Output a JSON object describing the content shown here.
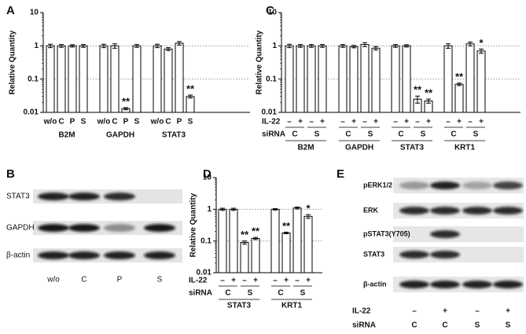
{
  "chart_data": [
    {
      "panel": "A",
      "type": "bar",
      "y_label": "Relative Quantity",
      "log_scale": true,
      "ylim": [
        0.01,
        10
      ],
      "yticks": [
        0.01,
        0.1,
        1,
        10
      ],
      "dashed_lines": [
        1,
        0.1
      ],
      "color": "#ffffff",
      "groups": [
        {
          "name": "B2M",
          "categories": [
            "w/o",
            "C",
            "P",
            "S"
          ],
          "values": [
            1,
            1,
            1,
            1
          ],
          "errors": [
            0.12,
            0.1,
            0.08,
            0.1
          ],
          "annotations": [
            null,
            null,
            null,
            null
          ]
        },
        {
          "name": "GAPDH",
          "categories": [
            "w/o",
            "C",
            "P",
            "S"
          ],
          "values": [
            1,
            1,
            0.013,
            1
          ],
          "errors": [
            0.12,
            0.15,
            0.001,
            0.1
          ],
          "annotations": [
            null,
            null,
            "**",
            null
          ]
        },
        {
          "name": "STAT3",
          "categories": [
            "w/o",
            "C",
            "P",
            "S"
          ],
          "values": [
            1,
            0.8,
            1.2,
            0.03
          ],
          "errors": [
            0.12,
            0.08,
            0.15,
            0.003
          ],
          "annotations": [
            null,
            null,
            null,
            "**"
          ]
        }
      ]
    },
    {
      "panel": "C",
      "type": "bar",
      "y_label": "Relative Quantity",
      "log_scale": true,
      "ylim": [
        0.01,
        10
      ],
      "yticks": [
        0.01,
        0.1,
        1,
        10
      ],
      "dashed_lines": [
        1,
        0.1
      ],
      "color": "#ffffff",
      "row_labels": {
        "il22": "IL-22",
        "sirna": "siRNA"
      },
      "groups": [
        {
          "name": "B2M",
          "il22": [
            "–",
            "+",
            "–",
            "+"
          ],
          "sirna": [
            "C",
            "S"
          ],
          "values": [
            1,
            1,
            1,
            1
          ],
          "errors": [
            0.12,
            0.1,
            0.1,
            0.1
          ],
          "annotations": [
            null,
            null,
            null,
            null
          ]
        },
        {
          "name": "GAPDH",
          "il22": [
            "–",
            "+",
            "–",
            "+"
          ],
          "sirna": [
            "C",
            "S"
          ],
          "values": [
            1,
            0.95,
            1.1,
            0.85
          ],
          "errors": [
            0.1,
            0.08,
            0.15,
            0.1
          ],
          "annotations": [
            null,
            null,
            null,
            null
          ]
        },
        {
          "name": "STAT3",
          "il22": [
            "–",
            "+",
            "–",
            "+"
          ],
          "sirna": [
            "C",
            "S"
          ],
          "values": [
            1,
            1,
            0.025,
            0.022
          ],
          "errors": [
            0.1,
            0.08,
            0.006,
            0.003
          ],
          "annotations": [
            null,
            null,
            "**",
            "**"
          ]
        },
        {
          "name": "KRT1",
          "il22": [
            "–",
            "+",
            "–",
            "+"
          ],
          "sirna": [
            "C",
            "S"
          ],
          "values": [
            1,
            0.07,
            1.15,
            0.7
          ],
          "errors": [
            0.15,
            0.006,
            0.15,
            0.1
          ],
          "annotations": [
            null,
            "**",
            null,
            "*"
          ]
        }
      ]
    },
    {
      "panel": "D",
      "type": "bar",
      "y_label": "Relative Quantity",
      "log_scale": true,
      "ylim": [
        0.01,
        10
      ],
      "yticks": [
        0.01,
        0.1,
        1,
        10
      ],
      "dashed_lines": [
        1,
        0.1
      ],
      "color": "#ffffff",
      "row_labels": {
        "il22": "IL-22",
        "sirna": "siRNA"
      },
      "groups": [
        {
          "name": "STAT3",
          "il22": [
            "–",
            "+",
            "–",
            "+"
          ],
          "sirna": [
            "C",
            "S"
          ],
          "values": [
            1,
            1,
            0.09,
            0.12
          ],
          "errors": [
            0.08,
            0.08,
            0.01,
            0.01
          ],
          "annotations": [
            null,
            null,
            "**",
            "**"
          ]
        },
        {
          "name": "KRT1",
          "il22": [
            "–",
            "+",
            "–",
            "+"
          ],
          "sirna": [
            "C",
            "S"
          ],
          "values": [
            1,
            0.18,
            1.1,
            0.6
          ],
          "errors": [
            0.05,
            0.01,
            0.08,
            0.08
          ],
          "annotations": [
            null,
            "**",
            null,
            "*"
          ]
        }
      ]
    }
  ],
  "blots": [
    {
      "panel": "B",
      "rows": [
        "STAT3",
        "GAPDH",
        "β-actin"
      ],
      "lanes": [
        "w/o",
        "C",
        "P",
        "S"
      ]
    },
    {
      "panel": "E",
      "rows": [
        "pERK1/2",
        "ERK",
        "pSTAT3(Y705)",
        "STAT3",
        "β-actin"
      ],
      "il22_label": "IL-22",
      "sirna_label": "siRNA",
      "il22": [
        "–",
        "+",
        "–",
        "+"
      ],
      "sirna": [
        "C",
        "C",
        "S",
        "S"
      ]
    }
  ]
}
